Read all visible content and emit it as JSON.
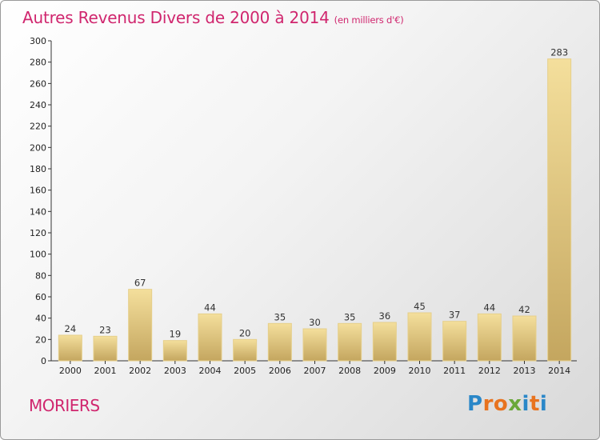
{
  "title": "Autres Revenus Divers de 2000 à 2014",
  "unit_note": "(en milliers d'€)",
  "place": "MORIERS",
  "logo_text": "Proxiti",
  "colors": {
    "title": "#d0266e",
    "bar_top": "#f4df9c",
    "bar_bottom": "#c4a65f",
    "bar_edge": "#e6cf8a"
  },
  "chart_data": {
    "type": "bar",
    "categories": [
      "2000",
      "2001",
      "2002",
      "2003",
      "2004",
      "2005",
      "2006",
      "2007",
      "2008",
      "2009",
      "2010",
      "2011",
      "2012",
      "2013",
      "2014"
    ],
    "values": [
      24,
      23,
      67,
      19,
      44,
      20,
      35,
      30,
      35,
      36,
      45,
      37,
      44,
      42,
      283
    ],
    "ylim": [
      0,
      300
    ],
    "yticks": [
      0,
      20,
      40,
      60,
      80,
      100,
      120,
      140,
      160,
      180,
      200,
      220,
      240,
      260,
      280,
      300
    ],
    "grid": false,
    "legend": "none"
  }
}
